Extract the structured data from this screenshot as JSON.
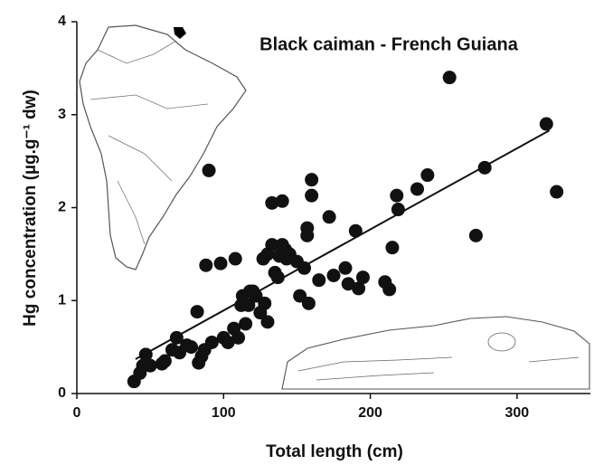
{
  "chart_data": {
    "type": "scatter",
    "title": "Black caiman - French Guiana",
    "x_label": "Total length (cm)",
    "y_label": "Hg concentration (µg.g⁻¹ dw)",
    "x": [
      39,
      43,
      45,
      47,
      50,
      58,
      60,
      65,
      68,
      70,
      75,
      78,
      82,
      83,
      85,
      87,
      88,
      90,
      92,
      98,
      100,
      103,
      107,
      108,
      110,
      112,
      113,
      115,
      117,
      118,
      120,
      122,
      125,
      127,
      128,
      130,
      130,
      133,
      133,
      135,
      137,
      138,
      140,
      140,
      142,
      143,
      145,
      150,
      152,
      155,
      157,
      157,
      158,
      160,
      160,
      165,
      172,
      175,
      183,
      185,
      190,
      192,
      195,
      210,
      213,
      215,
      218,
      219,
      232,
      239,
      254,
      272,
      278,
      320,
      327
    ],
    "values": [
      0.13,
      0.22,
      0.3,
      0.42,
      0.3,
      0.32,
      0.35,
      0.47,
      0.6,
      0.44,
      0.52,
      0.5,
      0.88,
      0.33,
      0.4,
      0.47,
      1.38,
      2.4,
      0.55,
      1.4,
      0.6,
      0.55,
      0.7,
      1.45,
      0.6,
      0.95,
      1.05,
      0.75,
      0.95,
      1.1,
      1.1,
      1.05,
      0.87,
      1.45,
      0.97,
      0.77,
      1.5,
      1.6,
      2.05,
      1.3,
      1.25,
      1.48,
      2.07,
      1.6,
      1.55,
      1.45,
      1.5,
      1.42,
      1.05,
      1.35,
      1.7,
      1.78,
      0.97,
      2.3,
      2.13,
      1.22,
      1.9,
      1.27,
      1.35,
      1.18,
      1.75,
      1.13,
      1.25,
      1.2,
      1.12,
      1.57,
      2.13,
      1.98,
      2.2,
      2.35,
      3.4,
      1.7,
      2.43,
      2.9,
      2.17
    ],
    "color": "#111111",
    "fit": {
      "x": [
        40,
        322
      ],
      "values": [
        0.37,
        2.83
      ]
    },
    "xlim": [
      0,
      350
    ],
    "xticks": [
      0,
      100,
      200,
      300
    ],
    "ylim": [
      0,
      4
    ],
    "yticks": [
      0,
      1,
      2,
      3,
      4
    ]
  }
}
